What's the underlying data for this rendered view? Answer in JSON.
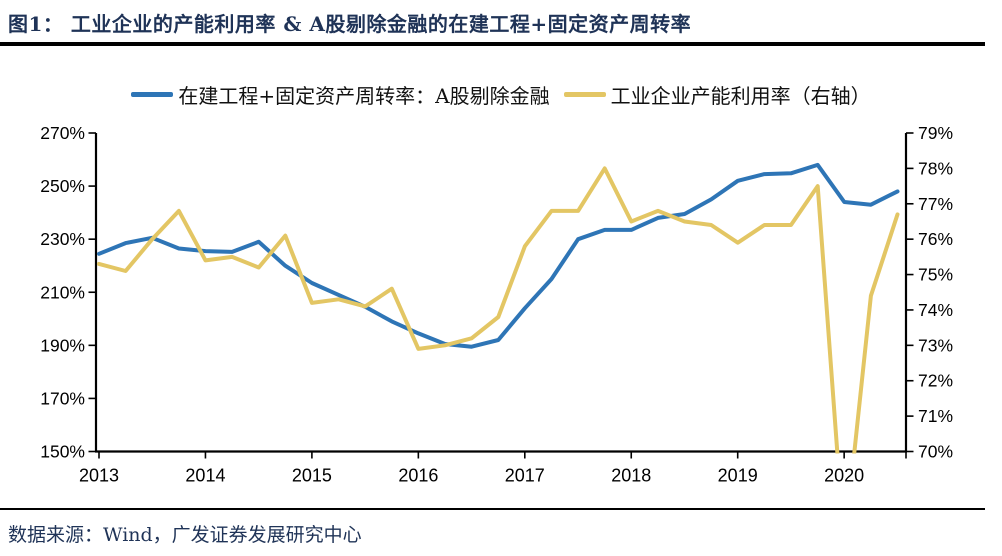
{
  "header": {
    "title": "图1：  工业企业的产能利用率 & A股剔除金融的在建工程+固定资产周转率"
  },
  "legend": {
    "items": [
      {
        "label": "在建工程+固定资产周转率：A股剔除金融",
        "color": "#2E75B6"
      },
      {
        "label": "工业企业产能利用率（右轴）",
        "color": "#E3C664"
      }
    ]
  },
  "footer": {
    "source": "数据来源：Wind，广发证券发展研究中心"
  },
  "chart_data": {
    "type": "line",
    "x": [
      "2013Q1",
      "2013Q2",
      "2013Q3",
      "2013Q4",
      "2014Q1",
      "2014Q2",
      "2014Q3",
      "2014Q4",
      "2015Q1",
      "2015Q2",
      "2015Q3",
      "2015Q4",
      "2016Q1",
      "2016Q2",
      "2016Q3",
      "2016Q4",
      "2017Q1",
      "2017Q2",
      "2017Q3",
      "2017Q4",
      "2018Q1",
      "2018Q2",
      "2018Q3",
      "2018Q4",
      "2019Q1",
      "2019Q2",
      "2019Q3",
      "2019Q4",
      "2020Q1",
      "2020Q2",
      "2020Q3"
    ],
    "series": [
      {
        "name": "在建工程+固定资产周转率：A股剔除金融",
        "axis": "left",
        "color": "#2E75B6",
        "values": [
          224.5,
          228.5,
          230.5,
          226.5,
          225.5,
          225.2,
          229,
          220,
          213.5,
          209,
          204.5,
          199,
          194.5,
          190.5,
          189.5,
          192,
          204,
          215,
          230,
          233.5,
          233.5,
          238,
          239.5,
          245,
          252,
          254.5,
          254.8,
          258,
          244,
          243,
          248
        ]
      },
      {
        "name": "工业企业产能利用率（右轴）",
        "axis": "right",
        "color": "#E3C664",
        "values": [
          75.3,
          75.1,
          76.0,
          76.8,
          75.4,
          75.5,
          75.2,
          76.1,
          74.2,
          74.3,
          74.1,
          74.6,
          72.9,
          73.0,
          73.2,
          73.8,
          75.8,
          76.8,
          76.8,
          78.0,
          76.5,
          76.8,
          76.5,
          76.4,
          75.9,
          76.4,
          76.4,
          77.5,
          67.3,
          74.4,
          76.7
        ]
      }
    ],
    "left_axis": {
      "label_suffix": "%",
      "min": 150,
      "max": 270,
      "step": 20,
      "tick_labels": [
        "270%",
        "250%",
        "230%",
        "210%",
        "190%",
        "170%",
        "150%"
      ]
    },
    "right_axis": {
      "label_suffix": "%",
      "min": 70,
      "max": 79,
      "step": 1,
      "tick_labels": [
        "79%",
        "78%",
        "77%",
        "76%",
        "75%",
        "74%",
        "73%",
        "72%",
        "71%",
        "70%"
      ]
    },
    "x_axis": {
      "tick_labels": [
        "2013",
        "2014",
        "2015",
        "2016",
        "2017",
        "2018",
        "2019",
        "2020"
      ]
    },
    "title": "图1：  工业企业的产能利用率 & A股剔除金融的在建工程+固定资产周转率",
    "grid": "off",
    "legend_position": "top-center",
    "note": "2020Q1 right-axis value 67.3 is below the 70% axis minimum and is clipped by the plot area"
  }
}
